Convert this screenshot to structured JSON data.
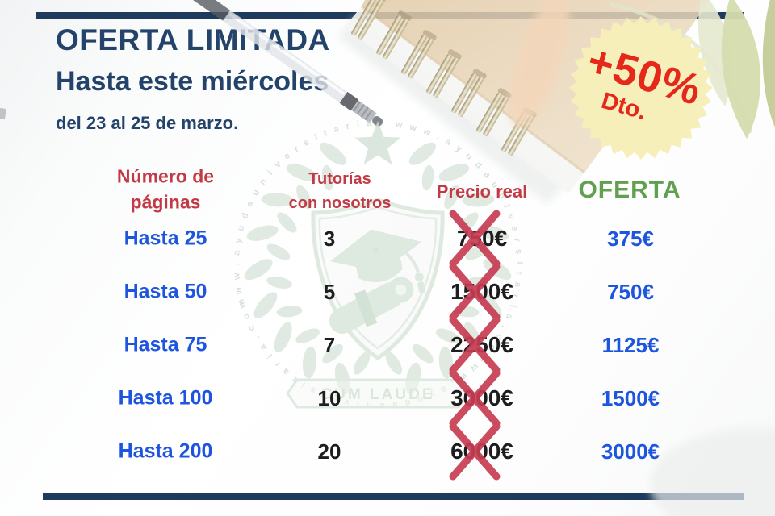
{
  "header": {
    "title": "OFERTA LIMITADA",
    "subtitle": "Hasta este miércoles",
    "date_range": "del 23 al 25 de marzo."
  },
  "badge": {
    "discount": "+50%",
    "label": "Dto."
  },
  "table": {
    "headers": {
      "pages_line1": "Número de",
      "pages_line2": "páginas",
      "tutoring_line1": "Tutorías",
      "tutoring_line2": "con nosotros",
      "real_price": "Precio real",
      "offer": "OFERTA"
    },
    "rows": [
      {
        "pages": "Hasta 25",
        "tutorials": "3",
        "real_price": "750€",
        "offer": "375€"
      },
      {
        "pages": "Hasta 50",
        "tutorials": "5",
        "real_price": "1500€",
        "offer": "750€"
      },
      {
        "pages": "Hasta 75",
        "tutorials": "7",
        "real_price": "2250€",
        "offer": "1125€"
      },
      {
        "pages": "Hasta 100",
        "tutorials": "10",
        "real_price": "3000€",
        "offer": "1500€"
      },
      {
        "pages": "Hasta 200",
        "tutorials": "20",
        "real_price": "6000€",
        "offer": "3000€"
      }
    ]
  },
  "watermark": {
    "brand": "CUM LAUDE",
    "circular_text": "w w w . a y u d a u n i v e r s i t a r i a . c o m"
  },
  "colors": {
    "navy_text": "#24436a",
    "navy_bar": "#1e3a5c",
    "header_red": "#c23a45",
    "value_blue": "#1d55de",
    "offer_green": "#61a04f",
    "price_black": "#1d1d1f",
    "cross_red": "#c73c52",
    "badge_yellow": "#f6efb9",
    "badge_red": "#e6281a",
    "watermark_green": "#d9e6db"
  }
}
